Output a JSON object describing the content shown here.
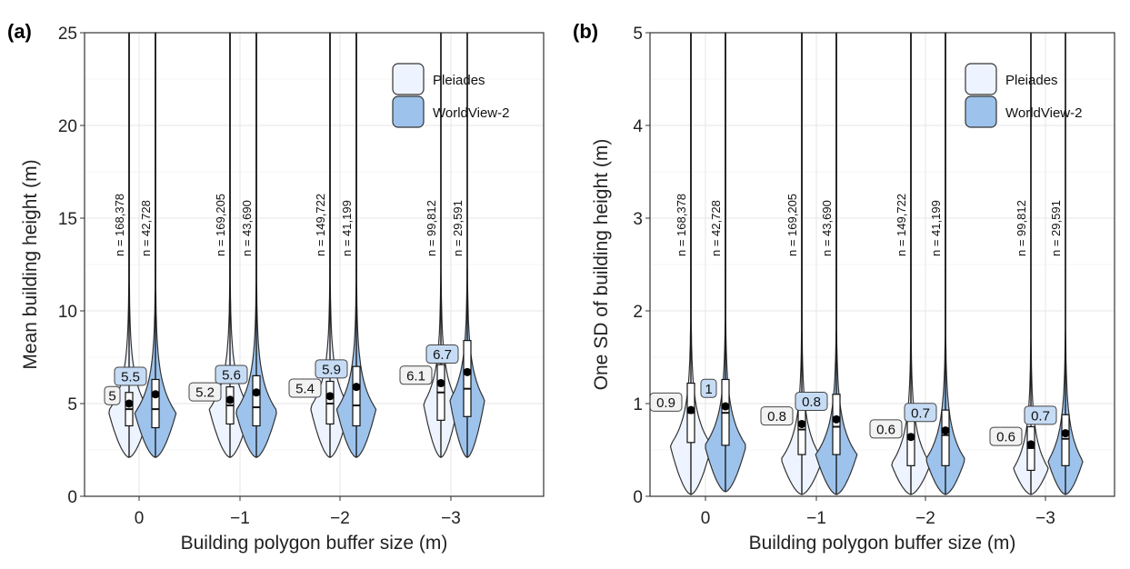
{
  "colors": {
    "pleiades_fill": "#eef4ff",
    "worldview_fill": "#9dc3ec",
    "outline": "#333333",
    "label_pleiades_bg": "#f2f2f2",
    "label_worldview_bg": "#c6dcf5"
  },
  "chart_data": [
    {
      "type": "violin",
      "panel_label": "(a)",
      "title": "",
      "xlabel": "Building polygon buffer size (m)",
      "ylabel": "Mean building height (m)",
      "ylim": [
        0,
        25
      ],
      "yticks": [
        "0",
        "5",
        "10",
        "15",
        "20",
        "25"
      ],
      "categories": [
        "0",
        "−1",
        "−2",
        "−3"
      ],
      "legend": {
        "position": "top-right",
        "entries": [
          "Pleiades",
          "WorldView-2"
        ]
      },
      "series": [
        {
          "name": "Pleiades",
          "n_labels": [
            "n = 168,378",
            "n = 169,205",
            "n = 149,722",
            "n = 99,812"
          ],
          "mean_labels": [
            "5",
            "5.2",
            "5.4",
            "6.1"
          ],
          "means": [
            5.0,
            5.2,
            5.4,
            6.1
          ],
          "medians": [
            4.7,
            4.9,
            5.0,
            5.6
          ],
          "q1": [
            3.8,
            3.9,
            3.9,
            4.1
          ],
          "q3": [
            5.6,
            5.9,
            6.2,
            7.1
          ],
          "whisker_low": [
            2.1,
            2.1,
            2.1,
            2.1
          ],
          "whisker_high": [
            25,
            25,
            25,
            25
          ],
          "density_mode": [
            4.6,
            4.7,
            4.8,
            5.0
          ],
          "max_halfwidth": [
            0.95,
            0.95,
            0.9,
            0.8
          ]
        },
        {
          "name": "WorldView-2",
          "n_labels": [
            "n = 42,728",
            "n = 43,690",
            "n = 41,199",
            "n = 29,591"
          ],
          "mean_labels": [
            "5.5",
            "5.6",
            "5.9",
            "6.7"
          ],
          "means": [
            5.5,
            5.6,
            5.9,
            6.7
          ],
          "medians": [
            4.7,
            4.8,
            4.9,
            5.8
          ],
          "q1": [
            3.7,
            3.8,
            3.8,
            4.3
          ],
          "q3": [
            6.3,
            6.5,
            7.0,
            8.4
          ],
          "whisker_low": [
            2.1,
            2.1,
            2.1,
            2.1
          ],
          "whisker_high": [
            25,
            25,
            25,
            25
          ],
          "density_mode": [
            4.5,
            4.6,
            4.7,
            5.2
          ],
          "max_halfwidth": [
            0.95,
            0.95,
            0.9,
            0.8
          ]
        }
      ]
    },
    {
      "type": "violin",
      "panel_label": "(b)",
      "title": "",
      "xlabel": "Building polygon buffer size (m)",
      "ylabel": "One SD of building height (m)",
      "ylim": [
        0,
        5
      ],
      "yticks": [
        "0",
        "1",
        "2",
        "3",
        "4",
        "5"
      ],
      "categories": [
        "0",
        "−1",
        "−2",
        "−3"
      ],
      "legend": {
        "position": "top-right",
        "entries": [
          "Pleiades",
          "WorldView-2"
        ]
      },
      "series": [
        {
          "name": "Pleiades",
          "n_labels": [
            "n = 168,378",
            "n = 169,205",
            "n = 149,722",
            "n = 99,812"
          ],
          "mean_labels": [
            "0.9",
            "0.8",
            "0.6",
            "0.6"
          ],
          "means": [
            0.93,
            0.78,
            0.64,
            0.56
          ],
          "medians": [
            0.9,
            0.72,
            0.62,
            0.52
          ],
          "q1": [
            0.58,
            0.45,
            0.33,
            0.28
          ],
          "q3": [
            1.22,
            1.03,
            0.85,
            0.75
          ],
          "whisker_low": [
            0.02,
            0.02,
            0.02,
            0.02
          ],
          "whisker_high": [
            5,
            5,
            5,
            5
          ],
          "density_mode": [
            0.55,
            0.4,
            0.35,
            0.3
          ],
          "max_halfwidth": [
            0.95,
            0.95,
            0.9,
            0.8
          ]
        },
        {
          "name": "WorldView-2",
          "n_labels": [
            "n = 42,728",
            "n = 43,690",
            "n = 41,199",
            "n = 29,591"
          ],
          "mean_labels": [
            "1",
            "0.8",
            "0.7",
            "0.7"
          ],
          "means": [
            0.97,
            0.83,
            0.71,
            0.68
          ],
          "medians": [
            0.9,
            0.75,
            0.66,
            0.62
          ],
          "q1": [
            0.55,
            0.45,
            0.33,
            0.33
          ],
          "q3": [
            1.26,
            1.1,
            0.93,
            0.88
          ],
          "whisker_low": [
            0.05,
            0.02,
            0.02,
            0.02
          ],
          "whisker_high": [
            5,
            5,
            5,
            5
          ],
          "density_mode": [
            0.55,
            0.45,
            0.4,
            0.38
          ],
          "max_halfwidth": [
            0.95,
            0.95,
            0.9,
            0.8
          ]
        }
      ]
    }
  ]
}
